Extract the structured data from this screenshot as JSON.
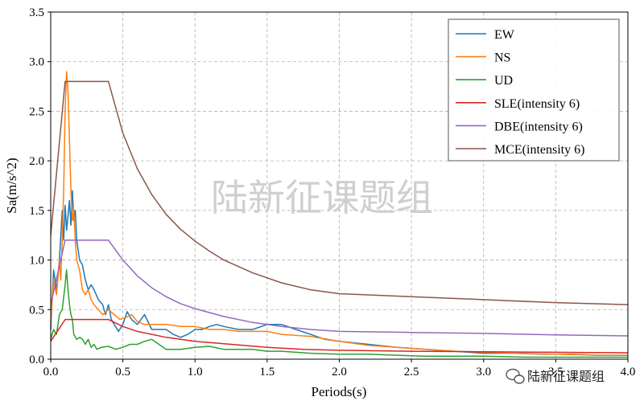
{
  "chart_data": {
    "type": "line",
    "xlabel": "Periods(s)",
    "ylabel": "Sa(m/s^2)",
    "xlim": [
      0,
      4.0
    ],
    "ylim": [
      0,
      3.5
    ],
    "xticks": [
      "0.0",
      "0.5",
      "1.0",
      "1.5",
      "2.0",
      "2.5",
      "3.0",
      "3.5",
      "4.0"
    ],
    "yticks": [
      "0.0",
      "0.5",
      "1.0",
      "1.5",
      "2.0",
      "2.5",
      "3.0",
      "3.5"
    ],
    "grid": true,
    "legend_position": "top-right",
    "watermark": "陆新征课题组",
    "badge_text": "陆新征课题组",
    "series": [
      {
        "name": "EW",
        "color": "#1f77b4",
        "x": [
          0,
          0.02,
          0.04,
          0.06,
          0.08,
          0.09,
          0.1,
          0.11,
          0.12,
          0.13,
          0.14,
          0.15,
          0.16,
          0.17,
          0.18,
          0.19,
          0.2,
          0.22,
          0.24,
          0.26,
          0.28,
          0.3,
          0.33,
          0.36,
          0.38,
          0.4,
          0.42,
          0.44,
          0.47,
          0.5,
          0.53,
          0.56,
          0.6,
          0.65,
          0.7,
          0.75,
          0.8,
          0.85,
          0.9,
          0.95,
          1.0,
          1.05,
          1.1,
          1.15,
          1.2,
          1.3,
          1.4,
          1.5,
          1.6,
          1.7,
          1.8,
          1.9,
          2.0,
          2.2,
          2.4,
          2.6,
          2.8,
          3.0,
          3.2,
          3.4,
          3.6,
          3.8,
          4.0
        ],
        "y": [
          0.3,
          0.9,
          0.7,
          1.0,
          1.5,
          1.2,
          1.55,
          1.3,
          1.45,
          1.6,
          1.35,
          1.7,
          1.4,
          1.5,
          1.2,
          1.1,
          1.0,
          0.95,
          0.8,
          0.7,
          0.75,
          0.7,
          0.6,
          0.55,
          0.45,
          0.55,
          0.4,
          0.35,
          0.28,
          0.35,
          0.48,
          0.4,
          0.35,
          0.45,
          0.3,
          0.3,
          0.3,
          0.25,
          0.22,
          0.25,
          0.3,
          0.3,
          0.33,
          0.35,
          0.33,
          0.3,
          0.3,
          0.35,
          0.35,
          0.3,
          0.25,
          0.2,
          0.18,
          0.15,
          0.12,
          0.1,
          0.08,
          0.06,
          0.06,
          0.05,
          0.05,
          0.04,
          0.04
        ]
      },
      {
        "name": "NS",
        "color": "#ff7f0e",
        "x": [
          0,
          0.02,
          0.04,
          0.06,
          0.07,
          0.08,
          0.09,
          0.1,
          0.11,
          0.12,
          0.13,
          0.14,
          0.15,
          0.16,
          0.17,
          0.18,
          0.2,
          0.22,
          0.24,
          0.26,
          0.28,
          0.3,
          0.33,
          0.36,
          0.4,
          0.44,
          0.48,
          0.52,
          0.56,
          0.6,
          0.65,
          0.7,
          0.8,
          0.9,
          1.0,
          1.1,
          1.2,
          1.3,
          1.4,
          1.5,
          1.6,
          1.8,
          2.0,
          2.2,
          2.4,
          2.6,
          2.8,
          3.0,
          3.2,
          3.5,
          3.8,
          4.0
        ],
        "y": [
          0.35,
          0.8,
          0.65,
          1.0,
          0.8,
          1.2,
          1.7,
          2.5,
          2.9,
          2.7,
          2.2,
          1.7,
          1.4,
          1.5,
          1.2,
          1.0,
          0.9,
          0.7,
          0.65,
          0.7,
          0.6,
          0.55,
          0.5,
          0.45,
          0.5,
          0.45,
          0.4,
          0.42,
          0.45,
          0.38,
          0.35,
          0.35,
          0.35,
          0.33,
          0.33,
          0.3,
          0.3,
          0.28,
          0.28,
          0.28,
          0.25,
          0.23,
          0.18,
          0.14,
          0.12,
          0.1,
          0.08,
          0.07,
          0.06,
          0.05,
          0.04,
          0.04
        ]
      },
      {
        "name": "UD",
        "color": "#2ca02c",
        "x": [
          0,
          0.02,
          0.04,
          0.06,
          0.08,
          0.1,
          0.11,
          0.12,
          0.13,
          0.14,
          0.15,
          0.16,
          0.18,
          0.2,
          0.22,
          0.24,
          0.26,
          0.28,
          0.3,
          0.32,
          0.35,
          0.4,
          0.45,
          0.5,
          0.55,
          0.6,
          0.65,
          0.7,
          0.75,
          0.8,
          0.9,
          1.0,
          1.1,
          1.2,
          1.3,
          1.4,
          1.5,
          1.6,
          1.8,
          2.0,
          2.2,
          2.4,
          2.6,
          2.8,
          3.0,
          3.3,
          3.6,
          4.0
        ],
        "y": [
          0.2,
          0.3,
          0.25,
          0.45,
          0.5,
          0.75,
          0.9,
          0.7,
          0.55,
          0.45,
          0.4,
          0.25,
          0.2,
          0.22,
          0.2,
          0.15,
          0.2,
          0.12,
          0.15,
          0.1,
          0.12,
          0.13,
          0.1,
          0.12,
          0.15,
          0.15,
          0.18,
          0.2,
          0.15,
          0.1,
          0.1,
          0.12,
          0.13,
          0.1,
          0.1,
          0.1,
          0.08,
          0.08,
          0.06,
          0.05,
          0.05,
          0.04,
          0.03,
          0.03,
          0.03,
          0.02,
          0.02,
          0.02
        ]
      },
      {
        "name": "SLE(intensity 6)",
        "color": "#d62728",
        "x": [
          0,
          0.1,
          0.4,
          0.5,
          0.6,
          0.8,
          1.0,
          1.25,
          1.5,
          1.75,
          2.0,
          2.25,
          2.5,
          2.75,
          3.0,
          3.25,
          3.5,
          3.75,
          4.0
        ],
        "y": [
          0.18,
          0.4,
          0.4,
          0.33,
          0.28,
          0.22,
          0.18,
          0.15,
          0.12,
          0.1,
          0.09,
          0.085,
          0.08,
          0.078,
          0.075,
          0.072,
          0.07,
          0.067,
          0.065
        ]
      },
      {
        "name": "DBE(intensity 6)",
        "color": "#9467bd",
        "x": [
          0,
          0.1,
          0.4,
          0.5,
          0.6,
          0.7,
          0.8,
          0.9,
          1.0,
          1.2,
          1.4,
          1.6,
          1.8,
          2.0,
          2.5,
          3.0,
          3.5,
          4.0
        ],
        "y": [
          0.55,
          1.2,
          1.2,
          1.0,
          0.84,
          0.72,
          0.63,
          0.56,
          0.51,
          0.43,
          0.37,
          0.33,
          0.3,
          0.28,
          0.27,
          0.26,
          0.245,
          0.235
        ]
      },
      {
        "name": "MCE(intensity 6)",
        "color": "#8c564b",
        "x": [
          0,
          0.1,
          0.4,
          0.5,
          0.6,
          0.7,
          0.8,
          0.9,
          1.0,
          1.1,
          1.2,
          1.4,
          1.6,
          1.8,
          2.0,
          2.5,
          3.0,
          3.5,
          4.0
        ],
        "y": [
          1.25,
          2.8,
          2.8,
          2.28,
          1.92,
          1.66,
          1.46,
          1.31,
          1.19,
          1.09,
          1.0,
          0.87,
          0.77,
          0.7,
          0.66,
          0.63,
          0.6,
          0.57,
          0.55
        ]
      }
    ]
  }
}
